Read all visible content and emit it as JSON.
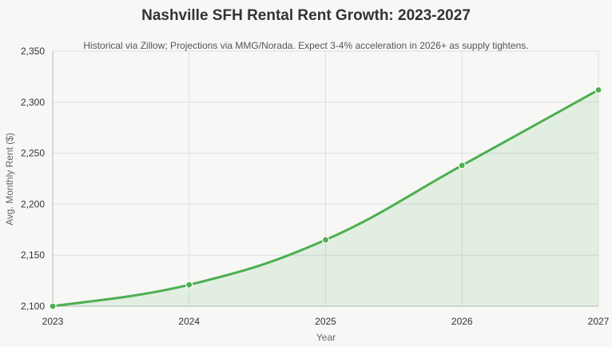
{
  "chart_data": {
    "type": "area",
    "title": "Nashville SFH Rental Rent Growth: 2023-2027",
    "subtitle": "Historical via Zillow; Projections via MMG/Norada. Expect 3-4% acceleration in 2026+ as supply tightens.",
    "xlabel": "Year",
    "ylabel": "Avg. Monthly Rent ($)",
    "categories": [
      "2023",
      "2024",
      "2025",
      "2026",
      "2027"
    ],
    "series": [
      {
        "name": "Avg. Monthly Rent ($)",
        "values": [
          2100,
          2121,
          2165,
          2238,
          2312
        ]
      }
    ],
    "ylim": [
      2100,
      2350
    ],
    "yticks": [
      2100,
      2150,
      2200,
      2250,
      2300,
      2350
    ],
    "ytick_labels": [
      "2,100",
      "2,150",
      "2,200",
      "2,250",
      "2,300",
      "2,350"
    ],
    "grid": true,
    "legend": "none",
    "colors": {
      "line": "#4caf50",
      "fill": "#4caf50",
      "grid": "#dddddd",
      "axis": "#bbbbbb",
      "background": "#f7f7f5"
    }
  }
}
